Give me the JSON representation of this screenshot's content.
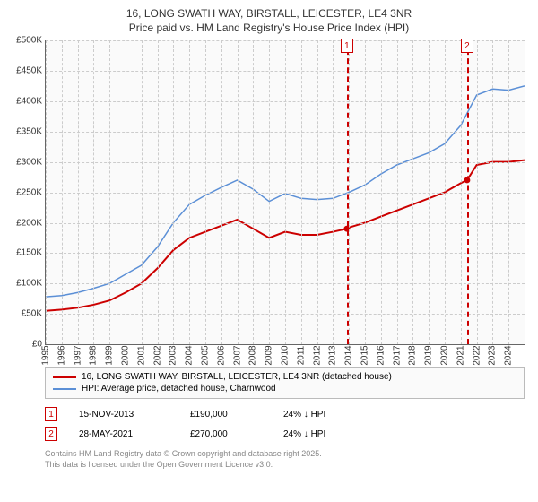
{
  "title": {
    "line1": "16, LONG SWATH WAY, BIRSTALL, LEICESTER, LE4 3NR",
    "line2": "Price paid vs. HM Land Registry's House Price Index (HPI)",
    "fontsize": 12,
    "color": "#333333"
  },
  "chart": {
    "type": "line",
    "background_color": "#fafafa",
    "grid_color": "#cccccc",
    "axis_color": "#666666",
    "xlim": [
      1995,
      2025
    ],
    "ylim": [
      0,
      500000
    ],
    "ytick_step": 50000,
    "yticks": [
      "£0",
      "£50K",
      "£100K",
      "£150K",
      "£200K",
      "£250K",
      "£300K",
      "£350K",
      "£400K",
      "£450K",
      "£500K"
    ],
    "xticks": [
      "1995",
      "1996",
      "1997",
      "1998",
      "1999",
      "2000",
      "2001",
      "2002",
      "2003",
      "2004",
      "2005",
      "2006",
      "2007",
      "2008",
      "2009",
      "2010",
      "2011",
      "2012",
      "2013",
      "2014",
      "2015",
      "2016",
      "2017",
      "2018",
      "2019",
      "2020",
      "2021",
      "2022",
      "2023",
      "2024",
      "   "
    ],
    "label_fontsize": 10,
    "series": [
      {
        "name": "price_paid",
        "label": "16, LONG SWATH WAY, BIRSTALL, LEICESTER, LE4 3NR (detached house)",
        "color": "#cc0000",
        "line_width": 2,
        "points": [
          [
            1995,
            55000
          ],
          [
            1996,
            57000
          ],
          [
            1997,
            60000
          ],
          [
            1998,
            65000
          ],
          [
            1999,
            72000
          ],
          [
            2000,
            85000
          ],
          [
            2001,
            100000
          ],
          [
            2002,
            125000
          ],
          [
            2003,
            155000
          ],
          [
            2004,
            175000
          ],
          [
            2005,
            185000
          ],
          [
            2006,
            195000
          ],
          [
            2007,
            205000
          ],
          [
            2008,
            190000
          ],
          [
            2009,
            175000
          ],
          [
            2010,
            185000
          ],
          [
            2011,
            180000
          ],
          [
            2012,
            180000
          ],
          [
            2013,
            185000
          ],
          [
            2013.87,
            190000
          ],
          [
            2014,
            192000
          ],
          [
            2015,
            200000
          ],
          [
            2016,
            210000
          ],
          [
            2017,
            220000
          ],
          [
            2018,
            230000
          ],
          [
            2019,
            240000
          ],
          [
            2020,
            250000
          ],
          [
            2021,
            265000
          ],
          [
            2021.4,
            270000
          ],
          [
            2022,
            295000
          ],
          [
            2023,
            300000
          ],
          [
            2024,
            300000
          ],
          [
            2025,
            303000
          ]
        ]
      },
      {
        "name": "hpi",
        "label": "HPI: Average price, detached house, Charnwood",
        "color": "#5b8fd6",
        "line_width": 1.5,
        "points": [
          [
            1995,
            78000
          ],
          [
            1996,
            80000
          ],
          [
            1997,
            85000
          ],
          [
            1998,
            92000
          ],
          [
            1999,
            100000
          ],
          [
            2000,
            115000
          ],
          [
            2001,
            130000
          ],
          [
            2002,
            160000
          ],
          [
            2003,
            200000
          ],
          [
            2004,
            230000
          ],
          [
            2005,
            245000
          ],
          [
            2006,
            258000
          ],
          [
            2007,
            270000
          ],
          [
            2008,
            255000
          ],
          [
            2009,
            235000
          ],
          [
            2010,
            248000
          ],
          [
            2011,
            240000
          ],
          [
            2012,
            238000
          ],
          [
            2013,
            240000
          ],
          [
            2014,
            250000
          ],
          [
            2015,
            262000
          ],
          [
            2016,
            280000
          ],
          [
            2017,
            295000
          ],
          [
            2018,
            305000
          ],
          [
            2019,
            315000
          ],
          [
            2020,
            330000
          ],
          [
            2021,
            360000
          ],
          [
            2022,
            410000
          ],
          [
            2023,
            420000
          ],
          [
            2024,
            418000
          ],
          [
            2025,
            425000
          ]
        ]
      }
    ],
    "markers": [
      {
        "id": "1",
        "x": 2013.87,
        "color": "#cc0000"
      },
      {
        "id": "2",
        "x": 2021.4,
        "color": "#cc0000"
      }
    ],
    "sale_points": [
      {
        "x": 2013.87,
        "y": 190000
      },
      {
        "x": 2021.4,
        "y": 270000
      }
    ]
  },
  "legend": {
    "items": [
      {
        "color": "#cc0000",
        "width": 3,
        "label": "16, LONG SWATH WAY, BIRSTALL, LEICESTER, LE4 3NR (detached house)"
      },
      {
        "color": "#5b8fd6",
        "width": 2,
        "label": "HPI: Average price, detached house, Charnwood"
      }
    ]
  },
  "sales_table": {
    "rows": [
      {
        "marker": "1",
        "date": "15-NOV-2013",
        "price": "£190,000",
        "delta": "24% ↓ HPI"
      },
      {
        "marker": "2",
        "date": "28-MAY-2021",
        "price": "£270,000",
        "delta": "24% ↓ HPI"
      }
    ]
  },
  "footer": {
    "line1": "Contains HM Land Registry data © Crown copyright and database right 2025.",
    "line2": "This data is licensed under the Open Government Licence v3.0.",
    "color": "#888888",
    "fontsize": 9
  }
}
